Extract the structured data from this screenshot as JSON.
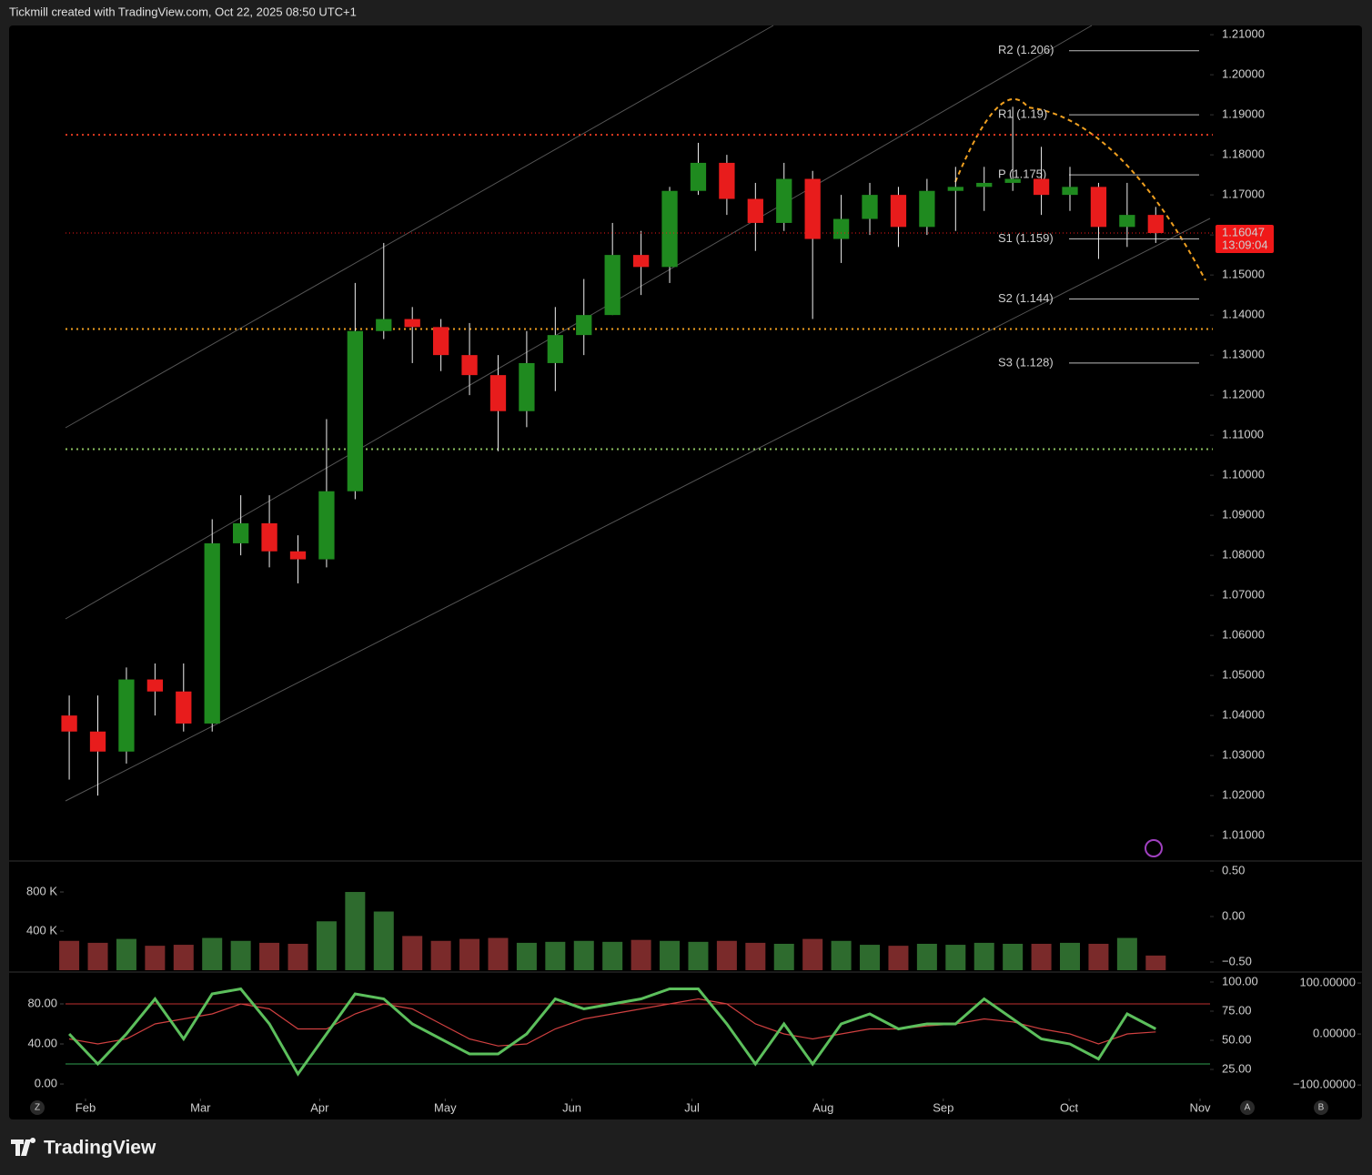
{
  "header": {
    "title": "Tickmill created with TradingView.com, Oct 22, 2025 08:50 UTC+1"
  },
  "chart_data": [
    {
      "type": "candlestick",
      "categories": [
        null,
        null,
        null,
        null,
        null,
        null,
        null,
        null,
        null,
        null,
        null,
        null,
        null,
        null,
        null,
        null,
        null,
        null,
        null,
        null,
        null,
        null,
        null,
        null,
        null,
        null,
        null,
        null,
        null,
        null,
        null,
        null,
        null,
        null,
        null,
        null,
        null,
        null,
        null
      ],
      "open": [
        1.04,
        1.036,
        1.031,
        1.049,
        1.046,
        1.038,
        1.083,
        1.088,
        1.081,
        1.079,
        1.096,
        1.136,
        1.139,
        1.137,
        1.13,
        1.125,
        1.116,
        1.128,
        1.135,
        1.14,
        1.155,
        1.152,
        1.171,
        1.178,
        1.169,
        1.163,
        1.174,
        1.159,
        1.164,
        1.17,
        1.162,
        1.171,
        1.172,
        1.173,
        1.174,
        1.17,
        1.172,
        1.162,
        1.165
      ],
      "high": [
        1.045,
        1.045,
        1.052,
        1.053,
        1.053,
        1.089,
        1.095,
        1.095,
        1.085,
        1.114,
        1.148,
        1.158,
        1.142,
        1.139,
        1.138,
        1.13,
        1.136,
        1.142,
        1.149,
        1.163,
        1.161,
        1.172,
        1.183,
        1.18,
        1.173,
        1.178,
        1.176,
        1.17,
        1.173,
        1.172,
        1.174,
        1.177,
        1.177,
        1.192,
        1.182,
        1.177,
        1.173,
        1.173,
        1.167
      ],
      "low": [
        1.024,
        1.02,
        1.028,
        1.04,
        1.036,
        1.036,
        1.08,
        1.077,
        1.073,
        1.077,
        1.094,
        1.134,
        1.128,
        1.126,
        1.12,
        1.106,
        1.112,
        1.121,
        1.13,
        1.14,
        1.145,
        1.148,
        1.17,
        1.165,
        1.156,
        1.161,
        1.139,
        1.153,
        1.16,
        1.157,
        1.16,
        1.161,
        1.166,
        1.171,
        1.165,
        1.166,
        1.154,
        1.157,
        1.158
      ],
      "close": [
        1.036,
        1.031,
        1.049,
        1.046,
        1.038,
        1.083,
        1.088,
        1.081,
        1.079,
        1.096,
        1.136,
        1.139,
        1.137,
        1.13,
        1.125,
        1.116,
        1.128,
        1.135,
        1.14,
        1.155,
        1.152,
        1.171,
        1.178,
        1.169,
        1.163,
        1.174,
        1.159,
        1.164,
        1.17,
        1.162,
        1.171,
        1.172,
        1.173,
        1.174,
        1.17,
        1.172,
        1.162,
        1.165,
        1.16047
      ],
      "up_color": "#1f8a1f",
      "down_color": "#e81c1c",
      "xlim": [
        -0.13,
        39.9
      ],
      "xticks": [
        {
          "value": 0.57,
          "label": "Feb"
        },
        {
          "value": 4.59,
          "label": "Mar"
        },
        {
          "value": 8.76,
          "label": "Apr"
        },
        {
          "value": 13.15,
          "label": "May"
        },
        {
          "value": 17.58,
          "label": "Jun"
        },
        {
          "value": 21.78,
          "label": "Jul"
        },
        {
          "value": 26.37,
          "label": "Aug"
        },
        {
          "value": 30.57,
          "label": "Sep"
        },
        {
          "value": 34.97,
          "label": "Oct"
        },
        {
          "value": 39.55,
          "label": "Nov"
        }
      ],
      "ylim": [
        1.0039,
        1.2123
      ],
      "yticks": [
        {
          "value": 1.01,
          "label": "1.01000"
        },
        {
          "value": 1.02,
          "label": "1.02000"
        },
        {
          "value": 1.03,
          "label": "1.03000"
        },
        {
          "value": 1.04,
          "label": "1.04000"
        },
        {
          "value": 1.05,
          "label": "1.05000"
        },
        {
          "value": 1.06,
          "label": "1.06000"
        },
        {
          "value": 1.07,
          "label": "1.07000"
        },
        {
          "value": 1.08,
          "label": "1.08000"
        },
        {
          "value": 1.09,
          "label": "1.09000"
        },
        {
          "value": 1.1,
          "label": "1.10000"
        },
        {
          "value": 1.11,
          "label": "1.11000"
        },
        {
          "value": 1.12,
          "label": "1.12000"
        },
        {
          "value": 1.13,
          "label": "1.13000"
        },
        {
          "value": 1.14,
          "label": "1.14000"
        },
        {
          "value": 1.15,
          "label": "1.15000"
        },
        {
          "value": 1.16,
          "label": "1.16000"
        },
        {
          "value": 1.17,
          "label": "1.17000"
        },
        {
          "value": 1.18,
          "label": "1.18000"
        },
        {
          "value": 1.19,
          "label": "1.19000"
        },
        {
          "value": 1.2,
          "label": "1.20000"
        },
        {
          "value": 1.21,
          "label": "1.21000"
        }
      ],
      "pivots": [
        {
          "label": "R2 (1.206)",
          "value": 1.206
        },
        {
          "label": "R1 (1.19)",
          "value": 1.19
        },
        {
          "label": "P (1.175)",
          "value": 1.175
        },
        {
          "label": "S1 (1.159)",
          "value": 1.159
        },
        {
          "label": "S2 (1.144)",
          "value": 1.144
        },
        {
          "label": "S3 (1.128)",
          "value": 1.128
        }
      ],
      "lines": [
        {
          "value": 1.185,
          "color": "#e03a20"
        },
        {
          "value": 1.1365,
          "color": "#f0a020"
        },
        {
          "value": 1.1065,
          "color": "#8cc060"
        }
      ],
      "last_price": 1.16047,
      "countdown": "13:09:04",
      "last_color": "#f01818"
    },
    {
      "type": "bar",
      "values": [
        300000,
        280000,
        320000,
        250000,
        260000,
        330000,
        300000,
        280000,
        270000,
        500000,
        800000,
        600000,
        350000,
        300000,
        320000,
        330000,
        280000,
        290000,
        300000,
        290000,
        310000,
        300000,
        290000,
        300000,
        280000,
        270000,
        320000,
        300000,
        260000,
        250000,
        270000,
        260000,
        280000,
        270000,
        270000,
        280000,
        270000,
        330000,
        150000
      ],
      "up_color": "#2e6b2e",
      "down_color": "#7a2a2a",
      "ylim": [
        0,
        1098000
      ],
      "yticks": [
        {
          "value": 400000,
          "label": "400 K"
        },
        {
          "value": 800000,
          "label": "800 K"
        }
      ],
      "y2lim": [
        -0.59,
        0.59
      ],
      "y2ticks": [
        {
          "value": -0.5,
          "label": "−0.50"
        },
        {
          "value": 0,
          "label": "0.00"
        },
        {
          "value": 0.5,
          "label": "0.50"
        }
      ]
    },
    {
      "type": "line",
      "series": [
        {
          "color": "#5cbf5c",
          "values": [
            50,
            20,
            50,
            85,
            45,
            90,
            95,
            60,
            10,
            50,
            90,
            85,
            60,
            45,
            30,
            30,
            50,
            85,
            75,
            80,
            85,
            95,
            95,
            60,
            20,
            60,
            20,
            60,
            70,
            55,
            60,
            60,
            85,
            65,
            45,
            40,
            25,
            70,
            55
          ]
        },
        {
          "color": "#d04040",
          "values": [
            45,
            40,
            45,
            60,
            65,
            70,
            80,
            75,
            55,
            55,
            70,
            80,
            75,
            60,
            45,
            38,
            40,
            55,
            65,
            70,
            75,
            80,
            85,
            80,
            60,
            50,
            45,
            50,
            55,
            55,
            58,
            60,
            65,
            62,
            55,
            50,
            40,
            50,
            52
          ]
        }
      ],
      "levels": [
        {
          "value": 80,
          "color": "#c03030"
        },
        {
          "value": 20,
          "color": "#30a050"
        }
      ],
      "ylim": [
        -12.7,
        110
      ],
      "yticks": [
        {
          "value": 0,
          "label": "0.00"
        },
        {
          "value": 40,
          "label": "40.00"
        },
        {
          "value": 80,
          "label": "80.00"
        }
      ],
      "y2lim": [
        1.6,
        107
      ],
      "y2ticks": [
        {
          "value": 25,
          "label": "25.00"
        },
        {
          "value": 50,
          "label": "50.00"
        },
        {
          "value": 75,
          "label": "75.00"
        },
        {
          "value": 100,
          "label": "100.00"
        }
      ],
      "y3lim": [
        -123,
        118
      ],
      "y3ticks": [
        {
          "value": -100,
          "label": "−100.00000"
        },
        {
          "value": 0,
          "label": "0.00000"
        },
        {
          "value": 100,
          "label": "100.00000"
        }
      ]
    }
  ],
  "buttons": {
    "zoom": "Z",
    "auto": "A",
    "base": "B"
  },
  "footer": {
    "logo": "TradingView"
  }
}
